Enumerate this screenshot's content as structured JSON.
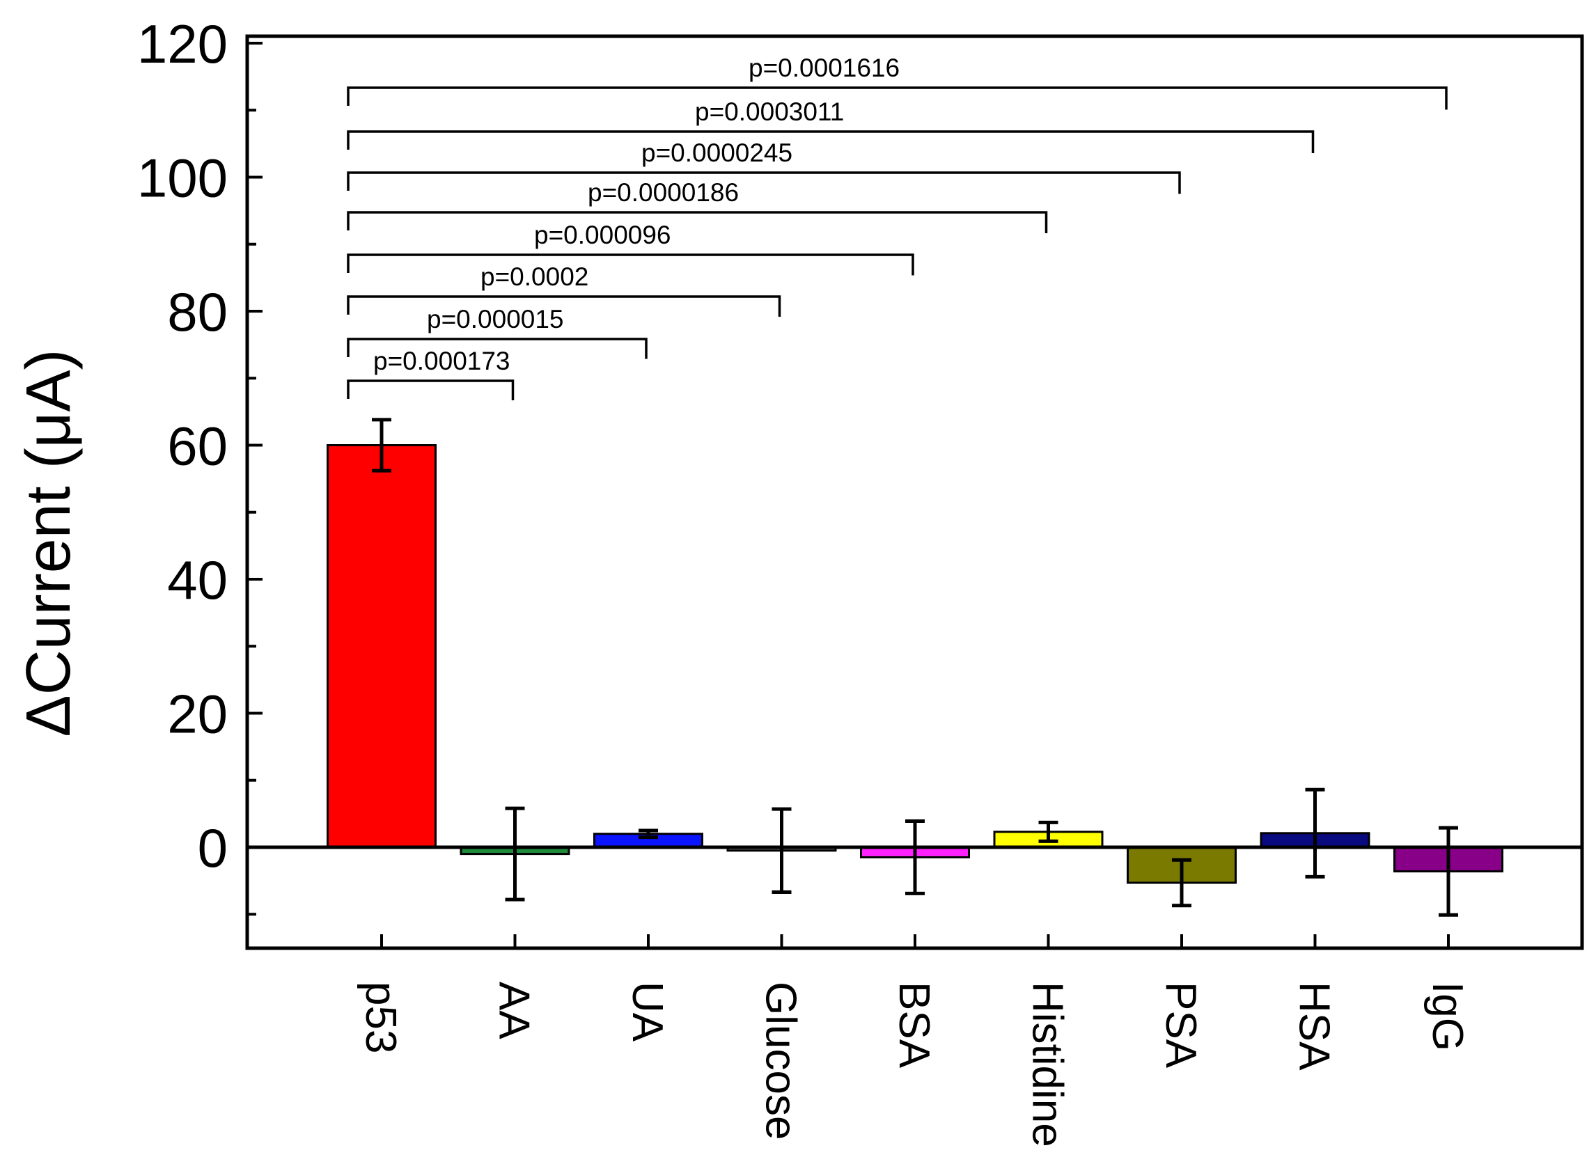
{
  "chart_data": {
    "type": "bar",
    "title": "",
    "xlabel": "",
    "ylabel": "ΔCurrent (μA)",
    "ylim": [
      -15,
      120
    ],
    "yticks": [
      0,
      20,
      40,
      60,
      80,
      100,
      120
    ],
    "categories": [
      "p53",
      "AA",
      "UA",
      "Glucose",
      "BSA",
      "Histidine",
      "PSA",
      "HSA",
      "IgG"
    ],
    "values": [
      60,
      -1,
      2,
      -0.5,
      -1.5,
      2.3,
      -5.3,
      2.1,
      -3.6
    ],
    "errors": [
      3.8,
      6.8,
      0.5,
      6.2,
      5.4,
      1.4,
      3.4,
      6.5,
      6.5
    ],
    "colors": [
      "#ff0000",
      "#1e8c3c",
      "#0a14ff",
      "#808080",
      "#ff22ff",
      "#ffff00",
      "#7a7a00",
      "#0a0a80",
      "#880088"
    ],
    "grid": false,
    "annotations": [
      {
        "from": "p53",
        "to": "AA",
        "label": "p=0.000173"
      },
      {
        "from": "p53",
        "to": "UA",
        "label": "p=0.000015"
      },
      {
        "from": "p53",
        "to": "Glucose",
        "label": "p=0.0002"
      },
      {
        "from": "p53",
        "to": "BSA",
        "label": "p=0.000096"
      },
      {
        "from": "p53",
        "to": "Histidine",
        "label": "p=0.0000186"
      },
      {
        "from": "p53",
        "to": "PSA",
        "label": "p=0.0000245"
      },
      {
        "from": "p53",
        "to": "HSA",
        "label": "p=0.0003011"
      },
      {
        "from": "p53",
        "to": "IgG",
        "label": "p=0.0001616"
      }
    ]
  }
}
